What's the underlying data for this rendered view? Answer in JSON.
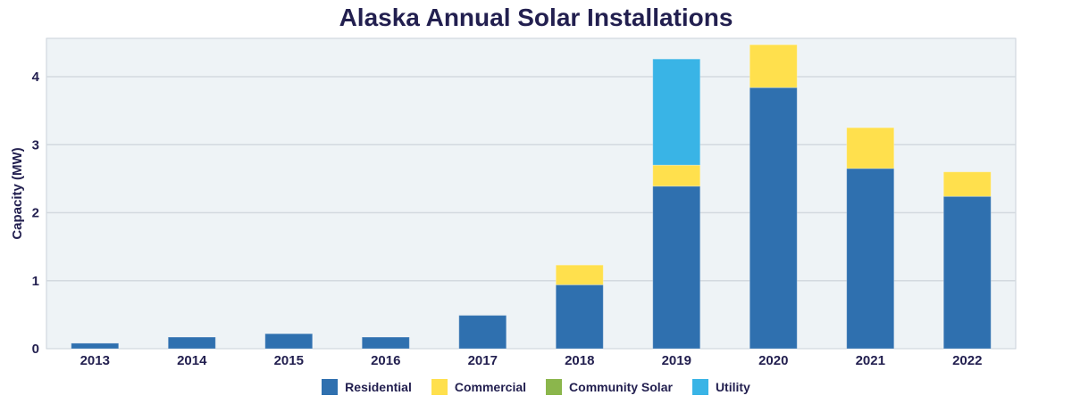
{
  "chart_data": {
    "type": "bar",
    "stacked": true,
    "title": "Alaska Annual Solar Installations",
    "xlabel": "",
    "ylabel": "Capacity (MW)",
    "ylim": [
      0,
      4.6
    ],
    "yticks": [
      "0",
      "1",
      "2",
      "3",
      "4"
    ],
    "grid": true,
    "legend_position": "bottom",
    "categories": [
      "2013",
      "2014",
      "2015",
      "2016",
      "2017",
      "2018",
      "2019",
      "2020",
      "2021",
      "2022"
    ],
    "series": [
      {
        "name": "Residential",
        "color": "#2f70af",
        "values": [
          0.08,
          0.17,
          0.22,
          0.17,
          0.49,
          0.94,
          2.39,
          3.84,
          2.65,
          2.24
        ]
      },
      {
        "name": "Commercial",
        "color": "#ffe04d",
        "values": [
          0,
          0,
          0,
          0,
          0,
          0.29,
          0.31,
          0.63,
          0.6,
          0.36
        ]
      },
      {
        "name": "Community Solar",
        "color": "#8bb64c",
        "values": [
          0,
          0,
          0,
          0,
          0,
          0,
          0,
          0,
          0,
          0
        ]
      },
      {
        "name": "Utility",
        "color": "#39b4e6",
        "values": [
          0,
          0,
          0,
          0,
          0,
          0,
          1.56,
          0,
          0,
          0
        ]
      }
    ]
  }
}
